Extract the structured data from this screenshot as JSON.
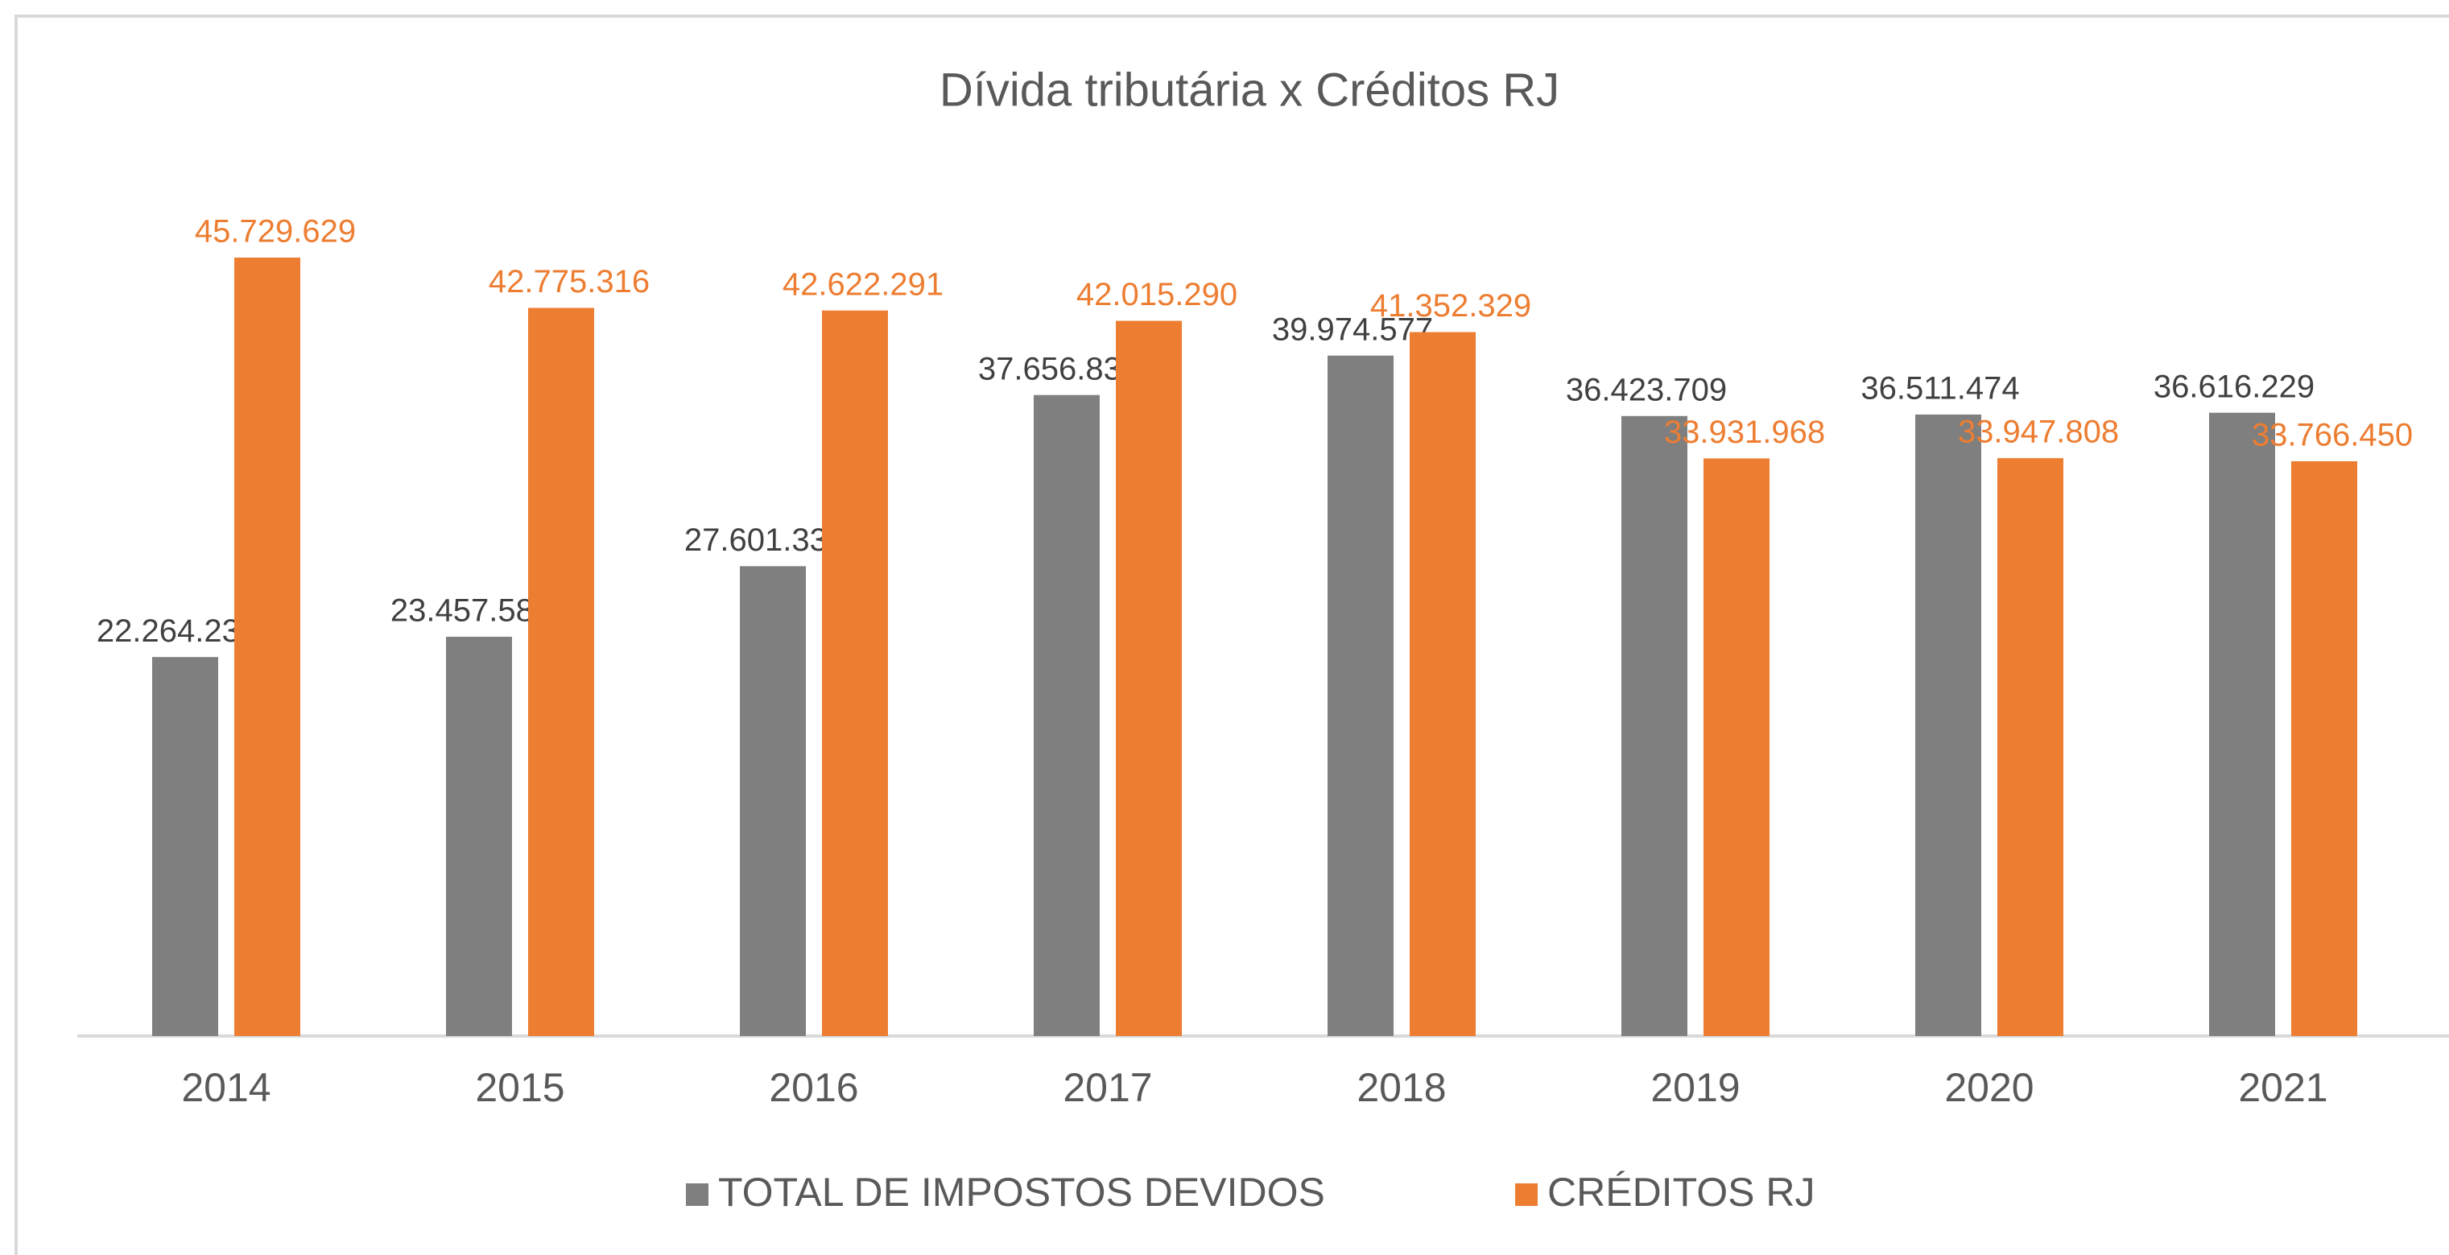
{
  "chart_data": {
    "type": "bar",
    "title": "Dívida tributária x Créditos RJ",
    "categories": [
      "2014",
      "2015",
      "2016",
      "2017",
      "2018",
      "2019",
      "2020",
      "2021"
    ],
    "series": [
      {
        "name": "TOTAL DE IMPOSTOS DEVIDOS",
        "color": "#7f7f7f",
        "values": [
          22264236,
          23457586,
          27601332,
          37656838,
          39974577,
          36423709,
          36511474,
          36616229
        ],
        "value_labels": [
          "22.264.236",
          "23.457.586",
          "27.601.332",
          "37.656.838",
          "39.974.577",
          "36.423.709",
          "36.511.474",
          "36.616.229"
        ]
      },
      {
        "name": "CRÉDITOS RJ",
        "color": "#ed7d31",
        "values": [
          45729629,
          42775316,
          42622291,
          42015290,
          41352329,
          33931968,
          33947808,
          33766450
        ],
        "value_labels": [
          "45.729.629",
          "42.775.316",
          "42.622.291",
          "42.015.290",
          "41.352.329",
          "33.931.968",
          "33.947.808",
          "33.766.450"
        ]
      }
    ]
  }
}
